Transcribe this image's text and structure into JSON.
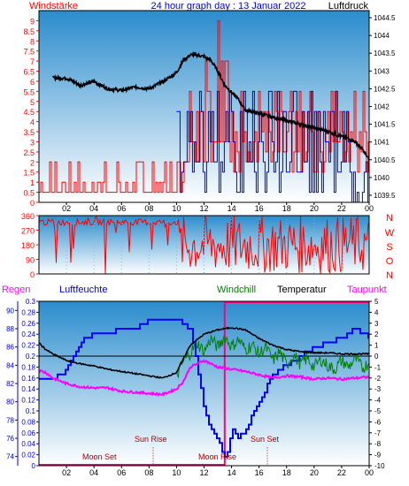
{
  "header": {
    "left": "Windstärke",
    "center": "24 hour graph day : 13 Januar 2022",
    "right": "Luftdruck"
  },
  "legend2": {
    "regen": "Regen",
    "luftfeuchte": "Luftfeuchte",
    "windchill": "Windchill",
    "temperatur": "Temperatur",
    "taupunkt": "Taupunkt"
  },
  "annotations": {
    "moon_set": "Moon Set",
    "sun_rise": "Sun Rise",
    "moon_rise": "Moon Rise",
    "sun_set": "Sun Set"
  },
  "colors": {
    "bg": "#ffffff",
    "plot_top": "#2a8ccd",
    "plot_bottom": "#ffffff",
    "wind": "#ff0000",
    "gust": "#0000ff",
    "pressure": "#000000",
    "humidity": "#0000ff",
    "temperature": "#000000",
    "windchill": "#008000",
    "dewpoint": "#ff00ff",
    "rain": "#ff0080",
    "axis_left": "#ff0000",
    "axis_right": "#000000"
  },
  "chart_data": [
    {
      "type": "line",
      "title": "24 hour graph day : 13 Januar 2022",
      "x_ticks": [
        "02",
        "04",
        "06",
        "08",
        "10",
        "12",
        "14",
        "16",
        "18",
        "20",
        "22",
        "00"
      ],
      "ylabel_left": "Windstärke",
      "ylabel_right": "Luftdruck",
      "ylim_left": [
        0,
        9.5
      ],
      "yticks_left": [
        "0",
        "0.5",
        "1",
        "1.5",
        "2",
        "2.5",
        "3",
        "3.5",
        "4",
        "4.5",
        "5",
        "5.5",
        "6",
        "6.5",
        "7",
        "7.5",
        "8",
        "8.5",
        "9"
      ],
      "ylim_right": [
        1039.3,
        1044.7
      ],
      "yticks_right": [
        "1039.5",
        "1040",
        "1040.5",
        "1041",
        "1041.5",
        "1042",
        "1042.5",
        "1043",
        "1043.5",
        "1044",
        "1044.5"
      ],
      "series": [
        {
          "name": "Luftdruck",
          "x": [
            1,
            2,
            3,
            4,
            5,
            6,
            7,
            8,
            9,
            10,
            10.5,
            11,
            11.5,
            12,
            12.5,
            13,
            13.5,
            14,
            14.5,
            15,
            16,
            17,
            18,
            19,
            20,
            21,
            22,
            22.5,
            23,
            23.5,
            24
          ],
          "values": [
            1042.8,
            1042.8,
            1042.6,
            1042.7,
            1042.5,
            1042.45,
            1042.55,
            1042.5,
            1042.7,
            1042.95,
            1043.3,
            1043.45,
            1043.45,
            1043.4,
            1043.3,
            1043.0,
            1042.6,
            1042.4,
            1042.2,
            1041.9,
            1041.8,
            1041.7,
            1041.6,
            1041.5,
            1041.4,
            1041.3,
            1041.15,
            1041.1,
            1041.0,
            1040.8,
            1040.5
          ]
        }
      ]
    },
    {
      "type": "line",
      "x_ticks": [
        "02",
        "04",
        "06",
        "08",
        "10",
        "12",
        "14",
        "16",
        "18",
        "20",
        "22",
        "00"
      ],
      "ylim": [
        0,
        360
      ],
      "yticks": [
        "0",
        "90",
        "180",
        "270",
        "360"
      ],
      "right_labels": [
        "N",
        "W",
        "S",
        "O",
        "N"
      ]
    },
    {
      "type": "line",
      "x_ticks": [
        "02",
        "04",
        "06",
        "08",
        "10",
        "12",
        "14",
        "16",
        "18",
        "20",
        "22",
        "00"
      ],
      "ylim_left_outer": [
        0,
        0.3
      ],
      "yticks_left_outer": [
        "0",
        "0.02",
        "0.04",
        "0.06",
        "0.08",
        "0.1",
        "0.12",
        "0.14",
        "0.16",
        "0.18",
        "0.2",
        "0.22",
        "0.24",
        "0.26",
        "0.28",
        "0.3"
      ],
      "ylim_left_inner": [
        73,
        91
      ],
      "yticks_left_inner": [
        "74",
        "76",
        "78",
        "80",
        "82",
        "84",
        "86",
        "88",
        "90"
      ],
      "ylim_right": [
        -10,
        5
      ],
      "yticks_right": [
        "5",
        "4",
        "3",
        "2",
        "1",
        "0",
        "-1",
        "-2",
        "-3",
        "-4",
        "-5",
        "-6",
        "-7",
        "-8",
        "-9",
        "-10"
      ],
      "series": [
        {
          "name": "Luftfeuchte",
          "x": [
            0,
            1,
            2,
            3,
            4,
            5,
            6,
            7,
            8,
            9,
            10,
            11,
            11.5,
            12,
            12.5,
            13,
            13.3,
            13.6,
            14,
            14.5,
            15,
            16,
            17,
            18,
            19,
            20,
            21,
            22,
            23,
            24
          ],
          "values": [
            82.5,
            82.5,
            83.5,
            86.5,
            87.5,
            87.5,
            88,
            88,
            89,
            89,
            89,
            88,
            84,
            79,
            77,
            76,
            74.5,
            73.5,
            77,
            76,
            77,
            80,
            83,
            84,
            85,
            86,
            86.5,
            87,
            88,
            87
          ]
        },
        {
          "name": "Temperatur",
          "x": [
            0,
            0.5,
            1,
            2,
            3,
            4,
            5,
            6,
            7,
            8,
            9,
            10,
            11,
            12,
            13,
            14,
            15,
            16,
            17,
            18,
            19,
            20,
            21,
            22,
            23,
            24
          ],
          "values": [
            1.2,
            0.6,
            0.2,
            -0.4,
            -0.7,
            -0.9,
            -1.2,
            -1.4,
            -1.6,
            -1.8,
            -2.0,
            -1.5,
            1.0,
            2.0,
            2.4,
            2.6,
            2.4,
            1.6,
            1.0,
            0.6,
            0.4,
            0.3,
            0.3,
            0.2,
            0.2,
            0.2
          ]
        },
        {
          "name": "Windchill",
          "x": [
            10,
            10.5,
            11,
            11.5,
            12,
            12.5,
            13,
            13.5,
            14,
            14.5,
            15,
            15.5,
            16,
            16.5,
            17,
            17.5,
            18,
            18.5,
            19,
            19.5,
            20,
            20.5,
            21,
            21.5,
            22,
            22.5,
            23,
            23.5,
            24
          ],
          "values": [
            -1.8,
            -0.5,
            0.3,
            1.2,
            0.4,
            1.6,
            0.8,
            1.8,
            0.9,
            1.5,
            0.6,
            1.0,
            0.2,
            0.8,
            -0.4,
            0.4,
            -0.8,
            0.1,
            -0.7,
            -0.2,
            -1.0,
            -0.3,
            -0.9,
            -1.2,
            -0.4,
            -1.0,
            -0.2,
            -1.1,
            -0.6
          ]
        },
        {
          "name": "Taupunkt",
          "x": [
            0,
            0.5,
            1,
            2,
            3,
            4,
            5,
            6,
            7,
            8,
            9,
            10,
            10.5,
            11,
            12,
            13,
            14,
            15,
            16,
            17,
            18,
            19,
            20,
            21,
            22,
            23,
            24
          ],
          "values": [
            -1.3,
            -1.5,
            -2.0,
            -2.5,
            -2.8,
            -2.9,
            -2.9,
            -3.2,
            -3.3,
            -3.4,
            -3.5,
            -3.0,
            -2.3,
            -1.0,
            -0.4,
            -1.0,
            -1.2,
            -1.4,
            -1.7,
            -2.0,
            -1.8,
            -1.9,
            -2.1,
            -2.0,
            -2.1,
            -2.0,
            -1.9
          ]
        }
      ]
    }
  ]
}
